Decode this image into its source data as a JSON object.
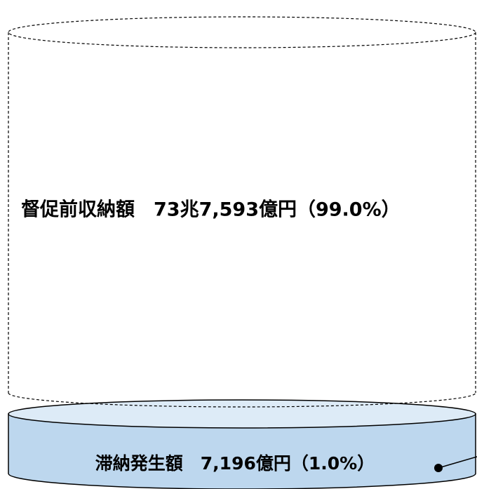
{
  "upper_label": "督促前収納額　73兆7,593億円（99.0%）",
  "lower_label": "滞納発生額　7,196億円（1.0%）"
}
